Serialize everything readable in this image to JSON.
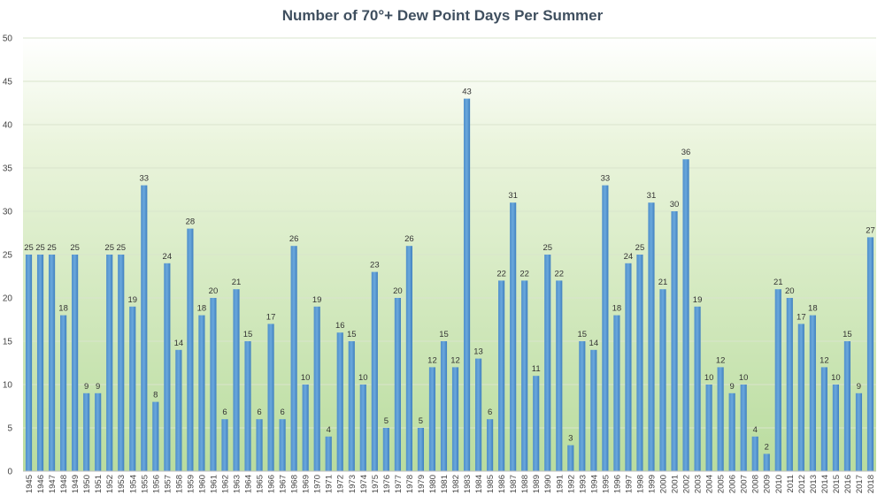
{
  "chart_data": {
    "type": "bar",
    "title": "Number of 70°+ Dew Point Days Per Summer",
    "xlabel": "",
    "ylabel": "",
    "ylim": [
      0,
      50
    ],
    "yticks": [
      0,
      5,
      10,
      15,
      20,
      25,
      30,
      35,
      40,
      45,
      50
    ],
    "grid": true,
    "legend": "none",
    "data_labels": true,
    "colors": {
      "bar": "#5b9bd5",
      "bar_dark": "#3d7fbf",
      "grid": "#d9e4cc",
      "axis_text": "#444444",
      "title": "#3f4f5f"
    },
    "categories": [
      "1945",
      "1946",
      "1947",
      "1948",
      "1949",
      "1950",
      "1951",
      "1952",
      "1953",
      "1954",
      "1955",
      "1956",
      "1957",
      "1958",
      "1959",
      "1960",
      "1961",
      "1962",
      "1963",
      "1964",
      "1965",
      "1966",
      "1967",
      "1968",
      "1969",
      "1970",
      "1971",
      "1972",
      "1973",
      "1974",
      "1975",
      "1976",
      "1977",
      "1978",
      "1979",
      "1980",
      "1981",
      "1982",
      "1983",
      "1984",
      "1985",
      "1986",
      "1987",
      "1988",
      "1989",
      "1990",
      "1991",
      "1992",
      "1993",
      "1994",
      "1995",
      "1996",
      "1997",
      "1998",
      "1999",
      "2000",
      "2001",
      "2002",
      "2003",
      "2004",
      "2005",
      "2006",
      "2007",
      "2008",
      "2009",
      "2010",
      "2011",
      "2012",
      "2013",
      "2014",
      "2015",
      "2016",
      "2017",
      "2018"
    ],
    "values": [
      25,
      25,
      25,
      18,
      25,
      9,
      9,
      25,
      25,
      19,
      33,
      8,
      24,
      14,
      28,
      18,
      20,
      6,
      21,
      15,
      6,
      17,
      6,
      26,
      10,
      19,
      4,
      16,
      15,
      10,
      23,
      5,
      20,
      26,
      5,
      12,
      15,
      12,
      43,
      13,
      6,
      22,
      31,
      22,
      11,
      25,
      22,
      3,
      15,
      14,
      33,
      18,
      24,
      25,
      31,
      21,
      30,
      36,
      19,
      10,
      12,
      9,
      10,
      4,
      2,
      21,
      20,
      17,
      18,
      12,
      10,
      15,
      9,
      27
    ]
  }
}
